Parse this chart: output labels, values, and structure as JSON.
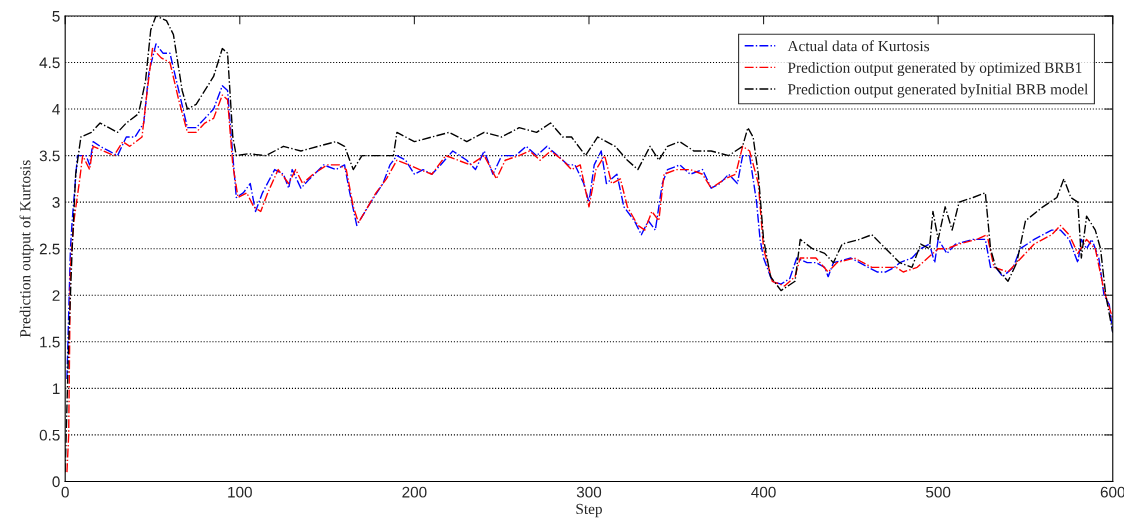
{
  "chart_data": {
    "type": "line",
    "xlabel": "Step",
    "ylabel": "Prediction output of Kurtosis",
    "xlim": [
      0,
      600
    ],
    "xticks": [
      0,
      100,
      200,
      300,
      400,
      500,
      600
    ],
    "ylim": [
      0,
      5
    ],
    "yticks": [
      0,
      0.5,
      1,
      1.5,
      2,
      2.5,
      3,
      3.5,
      4,
      4.5,
      5
    ],
    "grid": "y",
    "legend": "top right",
    "line_style": "dashdot",
    "marker": "none",
    "series": [
      {
        "name": "Actual data of Kurtosis",
        "color": "#0000ff",
        "x": [
          1,
          2,
          3,
          4,
          7,
          12,
          14,
          16,
          20,
          25,
          30,
          35,
          40,
          45,
          48,
          52,
          56,
          60,
          65,
          70,
          75,
          80,
          85,
          90,
          93,
          96,
          98,
          102,
          106,
          109,
          113,
          120,
          125,
          128,
          130,
          135,
          140,
          148,
          155,
          160,
          163,
          167,
          175,
          182,
          186,
          190,
          195,
          200,
          205,
          210,
          215,
          222,
          230,
          235,
          240,
          245,
          250,
          258,
          264,
          270,
          276,
          282,
          288,
          292,
          297,
          300,
          303,
          307,
          310,
          316,
          320,
          326,
          330,
          334,
          338,
          342,
          345,
          352,
          358,
          365,
          370,
          375,
          380,
          385,
          388,
          392,
          396,
          398,
          400,
          405,
          410,
          415,
          419,
          425,
          430,
          435,
          437,
          440,
          450,
          455,
          460,
          465,
          470,
          475,
          478,
          485,
          490,
          495,
          498,
          500,
          505,
          510,
          520,
          527,
          530,
          533,
          537,
          543,
          547,
          555,
          565,
          570,
          575,
          580,
          582,
          585,
          588,
          592,
          595,
          598,
          600
        ],
        "values": [
          1.1,
          1.8,
          2.5,
          2.8,
          3.5,
          3.5,
          3.4,
          3.65,
          3.6,
          3.55,
          3.5,
          3.7,
          3.7,
          3.85,
          4.4,
          4.7,
          4.6,
          4.6,
          4.2,
          3.8,
          3.8,
          3.9,
          4.0,
          4.25,
          4.2,
          3.5,
          3.05,
          3.1,
          3.2,
          2.9,
          3.1,
          3.35,
          3.3,
          3.15,
          3.35,
          3.15,
          3.25,
          3.4,
          3.35,
          3.4,
          3.1,
          2.75,
          3.0,
          3.2,
          3.4,
          3.5,
          3.45,
          3.3,
          3.35,
          3.3,
          3.4,
          3.55,
          3.45,
          3.35,
          3.55,
          3.3,
          3.5,
          3.5,
          3.6,
          3.5,
          3.6,
          3.5,
          3.4,
          3.4,
          3.2,
          3.0,
          3.4,
          3.55,
          3.2,
          3.3,
          2.95,
          2.8,
          2.65,
          2.8,
          2.7,
          3.2,
          3.35,
          3.4,
          3.3,
          3.35,
          3.15,
          3.2,
          3.3,
          3.2,
          3.5,
          3.5,
          3.0,
          2.6,
          2.4,
          2.15,
          2.12,
          2.18,
          2.4,
          2.35,
          2.35,
          2.3,
          2.2,
          2.35,
          2.4,
          2.35,
          2.3,
          2.25,
          2.25,
          2.3,
          2.35,
          2.4,
          2.5,
          2.55,
          2.35,
          2.6,
          2.45,
          2.55,
          2.6,
          2.6,
          2.3,
          2.3,
          2.2,
          2.3,
          2.5,
          2.6,
          2.7,
          2.7,
          2.6,
          2.35,
          2.6,
          2.5,
          2.6,
          2.4,
          2.0,
          1.9,
          1.6
        ]
      },
      {
        "name": "Prediction output generated by optimized BRB1",
        "color": "#ff0000",
        "x": [
          1,
          2,
          3,
          5,
          8,
          10,
          14,
          16,
          22,
          28,
          33,
          37,
          44,
          47,
          50,
          55,
          60,
          65,
          70,
          75,
          80,
          85,
          90,
          93,
          96,
          99,
          104,
          108,
          112,
          116,
          122,
          128,
          132,
          136,
          142,
          150,
          157,
          161,
          165,
          168,
          178,
          184,
          190,
          197,
          203,
          210,
          218,
          225,
          232,
          240,
          247,
          252,
          260,
          266,
          272,
          278,
          285,
          290,
          295,
          300,
          304,
          309,
          313,
          318,
          322,
          328,
          332,
          336,
          340,
          343,
          350,
          358,
          365,
          370,
          378,
          384,
          388,
          392,
          397,
          400,
          405,
          412,
          418,
          421,
          430,
          437,
          442,
          452,
          462,
          470,
          476,
          480,
          488,
          494,
          500,
          505,
          512,
          522,
          528,
          532,
          540,
          545,
          555,
          565,
          570,
          575,
          580,
          585,
          590,
          595,
          600
        ],
        "values": [
          0.1,
          0.5,
          2.3,
          2.8,
          3.2,
          3.5,
          3.35,
          3.6,
          3.55,
          3.5,
          3.65,
          3.6,
          3.7,
          4.2,
          4.65,
          4.55,
          4.5,
          4.1,
          3.75,
          3.75,
          3.85,
          3.9,
          4.15,
          4.1,
          3.4,
          3.05,
          3.1,
          2.95,
          2.9,
          3.1,
          3.35,
          3.2,
          3.35,
          3.2,
          3.3,
          3.4,
          3.4,
          3.35,
          2.95,
          2.78,
          3.1,
          3.25,
          3.45,
          3.4,
          3.35,
          3.3,
          3.5,
          3.45,
          3.4,
          3.5,
          3.25,
          3.45,
          3.5,
          3.55,
          3.45,
          3.55,
          3.45,
          3.35,
          3.4,
          2.95,
          3.35,
          3.5,
          3.2,
          3.25,
          2.95,
          2.75,
          2.7,
          2.9,
          2.8,
          3.3,
          3.35,
          3.35,
          3.3,
          3.15,
          3.25,
          3.3,
          3.6,
          3.55,
          3.2,
          2.5,
          2.15,
          2.1,
          2.2,
          2.4,
          2.4,
          2.25,
          2.35,
          2.4,
          2.3,
          2.3,
          2.3,
          2.25,
          2.3,
          2.4,
          2.5,
          2.5,
          2.55,
          2.6,
          2.65,
          2.3,
          2.25,
          2.35,
          2.55,
          2.65,
          2.75,
          2.65,
          2.45,
          2.6,
          2.5,
          2.05,
          1.75
        ]
      },
      {
        "name": "Prediction output generated byInitial BRB model",
        "color": "#000000",
        "x": [
          0,
          2,
          4,
          6,
          9,
          15,
          20,
          25,
          30,
          35,
          42,
          46,
          49,
          52,
          58,
          62,
          67,
          70,
          75,
          80,
          85,
          90,
          93,
          96,
          98,
          105,
          115,
          125,
          135,
          145,
          155,
          160,
          165,
          170,
          180,
          188,
          190,
          200,
          210,
          220,
          230,
          240,
          250,
          260,
          270,
          278,
          285,
          290,
          298,
          305,
          315,
          322,
          328,
          335,
          340,
          345,
          352,
          360,
          370,
          380,
          388,
          391,
          394,
          397,
          400,
          404,
          410,
          418,
          421,
          428,
          435,
          440,
          445,
          455,
          462,
          470,
          478,
          485,
          490,
          495,
          497,
          500,
          504,
          508,
          512,
          520,
          527,
          530,
          533,
          540,
          545,
          550,
          560,
          568,
          572,
          576,
          580,
          582,
          585,
          590,
          593,
          596,
          600
        ],
        "values": [
          0.1,
          1.5,
          2.5,
          3.3,
          3.7,
          3.75,
          3.85,
          3.8,
          3.75,
          3.85,
          3.95,
          4.3,
          4.85,
          5.0,
          4.95,
          4.8,
          4.2,
          4.0,
          4.05,
          4.2,
          4.35,
          4.65,
          4.6,
          3.7,
          3.5,
          3.52,
          3.5,
          3.6,
          3.55,
          3.6,
          3.65,
          3.6,
          3.35,
          3.5,
          3.5,
          3.5,
          3.75,
          3.65,
          3.7,
          3.75,
          3.65,
          3.75,
          3.7,
          3.8,
          3.75,
          3.85,
          3.7,
          3.7,
          3.5,
          3.7,
          3.6,
          3.45,
          3.35,
          3.6,
          3.45,
          3.6,
          3.65,
          3.55,
          3.55,
          3.5,
          3.6,
          3.8,
          3.7,
          3.3,
          2.6,
          2.2,
          2.05,
          2.15,
          2.6,
          2.5,
          2.45,
          2.35,
          2.55,
          2.6,
          2.65,
          2.5,
          2.35,
          2.3,
          2.55,
          2.5,
          2.9,
          2.6,
          2.95,
          2.7,
          3.0,
          3.05,
          3.1,
          2.5,
          2.3,
          2.15,
          2.35,
          2.8,
          2.95,
          3.05,
          3.25,
          3.05,
          3.0,
          2.4,
          2.85,
          2.7,
          2.5,
          2.0,
          1.6
        ]
      }
    ]
  }
}
